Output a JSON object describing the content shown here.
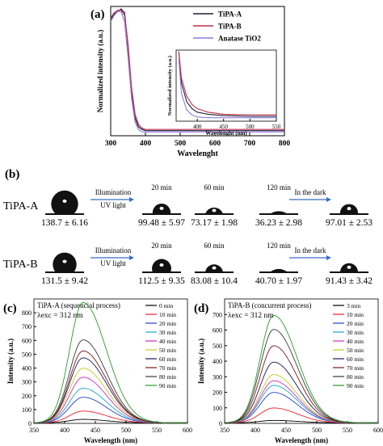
{
  "panels": {
    "a": {
      "letter": "(a)"
    },
    "b": {
      "letter": "(b)"
    },
    "c": {
      "letter": "(c)"
    },
    "d": {
      "letter": "(d)"
    }
  },
  "chart_data": [
    {
      "id": "a-main",
      "type": "line",
      "xlabel": "Wavelenght",
      "ylabel": "Normalized intensity (a.u.)",
      "xlim": [
        300,
        800
      ],
      "xticks": [
        "300",
        "400",
        "500",
        "600",
        "700",
        "800"
      ],
      "legend": "top-right",
      "series": [
        {
          "name": "TiPA-A",
          "color": "#1f1f3a",
          "x": [
            300,
            310,
            320,
            330,
            340,
            350,
            360,
            370,
            380,
            390,
            400,
            450,
            500,
            600,
            700,
            800
          ],
          "y": [
            0.92,
            0.96,
            0.98,
            1.0,
            0.97,
            0.7,
            0.35,
            0.14,
            0.07,
            0.05,
            0.04,
            0.04,
            0.04,
            0.04,
            0.04,
            0.04
          ]
        },
        {
          "name": "TiPA-B",
          "color": "#c0304a",
          "x": [
            300,
            310,
            320,
            330,
            340,
            350,
            360,
            370,
            380,
            390,
            400,
            450,
            500,
            600,
            700,
            800
          ],
          "y": [
            0.93,
            0.97,
            0.99,
            0.99,
            0.95,
            0.72,
            0.38,
            0.17,
            0.09,
            0.06,
            0.05,
            0.05,
            0.05,
            0.05,
            0.05,
            0.05
          ]
        },
        {
          "name": "Anatase TiO2",
          "color": "#8a7ce0",
          "x": [
            300,
            310,
            320,
            330,
            340,
            350,
            360,
            370,
            380,
            390,
            400,
            450,
            500,
            600,
            700,
            800
          ],
          "y": [
            0.9,
            0.95,
            0.98,
            0.98,
            0.9,
            0.62,
            0.3,
            0.11,
            0.05,
            0.03,
            0.03,
            0.03,
            0.03,
            0.03,
            0.03,
            0.03
          ]
        }
      ]
    },
    {
      "id": "a-inset",
      "type": "line",
      "xlabel": "Wavelenght (nm)",
      "ylabel": "Normalized intensity (a.u.)",
      "xlim": [
        360,
        550
      ],
      "xticks": [
        "400",
        "450",
        "500",
        "550"
      ],
      "series": [
        {
          "name": "TiPA-A",
          "color": "#1f1f3a",
          "x": [
            365,
            370,
            380,
            390,
            400,
            420,
            450,
            500,
            550
          ],
          "y": [
            1.0,
            0.55,
            0.28,
            0.18,
            0.13,
            0.1,
            0.08,
            0.07,
            0.07
          ]
        },
        {
          "name": "TiPA-B",
          "color": "#c0304a",
          "x": [
            365,
            370,
            380,
            390,
            400,
            420,
            450,
            500,
            550
          ],
          "y": [
            1.0,
            0.62,
            0.36,
            0.24,
            0.18,
            0.13,
            0.1,
            0.09,
            0.09
          ]
        },
        {
          "name": "Anatase TiO2",
          "color": "#8a7ce0",
          "x": [
            365,
            370,
            380,
            390,
            400,
            420,
            450,
            500,
            550
          ],
          "y": [
            0.9,
            0.4,
            0.16,
            0.09,
            0.06,
            0.05,
            0.05,
            0.05,
            0.05
          ]
        }
      ]
    },
    {
      "id": "c",
      "type": "line",
      "title": "TiPA-A (sequencial process)",
      "annotation": "λexc = 312 nm",
      "xlabel": "Wavelength (nm)",
      "ylabel": "Intensity (a.u.)",
      "xlim": [
        350,
        600
      ],
      "ylim": [
        0,
        900
      ],
      "xticks": [
        "350",
        "400",
        "450",
        "500",
        "550",
        "600"
      ],
      "yticks": [
        "0",
        "100",
        "200",
        "300",
        "400",
        "500",
        "600",
        "700",
        "800"
      ],
      "peak_x": 430,
      "series": [
        {
          "name": "0 min",
          "color": "#000000",
          "peak": 25
        },
        {
          "name": "10 min",
          "color": "#e8202a",
          "peak": 85
        },
        {
          "name": "20 min",
          "color": "#2240c8",
          "peak": 185
        },
        {
          "name": "30 min",
          "color": "#1aa6c8",
          "peak": 250
        },
        {
          "name": "40 min",
          "color": "#d02cc0",
          "peak": 330
        },
        {
          "name": "50 min",
          "color": "#c8c820",
          "peak": 395
        },
        {
          "name": "60 min",
          "color": "#1a1a60",
          "peak": 470
        },
        {
          "name": "70 min",
          "color": "#7a1a1a",
          "peak": 520
        },
        {
          "name": "80 min",
          "color": "#3a3a3a",
          "peak": 600
        },
        {
          "name": "90 min",
          "color": "#2a9a2a",
          "peak": 870
        }
      ]
    },
    {
      "id": "d",
      "type": "line",
      "title": "TiPA-B (concurrent process)",
      "annotation": "λexc = 312 nm",
      "xlabel": "Wavelength (nm)",
      "ylabel": "Intensity (a.u.)",
      "xlim": [
        350,
        600
      ],
      "ylim": [
        0,
        800
      ],
      "xticks": [
        "350",
        "400",
        "450",
        "500",
        "550",
        "600"
      ],
      "yticks": [
        "0",
        "100",
        "200",
        "300",
        "400",
        "500",
        "600",
        "700"
      ],
      "peak_x": 430,
      "series": [
        {
          "name": "3 min",
          "color": "#000000",
          "peak": 15
        },
        {
          "name": "10 min",
          "color": "#e8202a",
          "peak": 95
        },
        {
          "name": "20 min",
          "color": "#2240c8",
          "peak": 195
        },
        {
          "name": "30 min",
          "color": "#1aa6c8",
          "peak": 240
        },
        {
          "name": "40 min",
          "color": "#d02cc0",
          "peak": 270
        },
        {
          "name": "50 min",
          "color": "#c8c820",
          "peak": 310
        },
        {
          "name": "60 min",
          "color": "#1a1a60",
          "peak": 390
        },
        {
          "name": "70 min",
          "color": "#7a1a1a",
          "peak": 495
        },
        {
          "name": "80 min",
          "color": "#3a3a3a",
          "peak": 600
        },
        {
          "name": "90 min",
          "color": "#2a9a2a",
          "peak": 690
        }
      ]
    }
  ],
  "contact_angle": {
    "step_illumination": "Illumination",
    "step_uv": "UV light",
    "step_dark": "In the dark",
    "rows": [
      {
        "label": "TiPA-A",
        "drops": [
          {
            "time": "",
            "value": "138.7 ± 6.16",
            "angle": 138.7
          },
          {
            "time": "20 min",
            "value": "99.48 ± 5.97",
            "angle": 99.48
          },
          {
            "time": "60 min",
            "value": "73.17 ± 1.98",
            "angle": 73.17
          },
          {
            "time": "120 min",
            "value": "36.23 ± 2.98",
            "angle": 36.23
          },
          {
            "time": "",
            "value": "97.01 ± 2.53",
            "angle": 97.01
          }
        ]
      },
      {
        "label": "TiPA-B",
        "drops": [
          {
            "time": "",
            "value": "131.5 ± 9.42",
            "angle": 131.5
          },
          {
            "time": "20 min",
            "value": "112.5 ± 9.35",
            "angle": 112.5
          },
          {
            "time": "60 min",
            "value": "83.08 ± 10.4",
            "angle": 83.08
          },
          {
            "time": "120 min",
            "value": "40.70 ± 1.97",
            "angle": 40.7
          },
          {
            "time": "",
            "value": "91.43 ± 3.42",
            "angle": 91.43
          }
        ]
      }
    ]
  }
}
